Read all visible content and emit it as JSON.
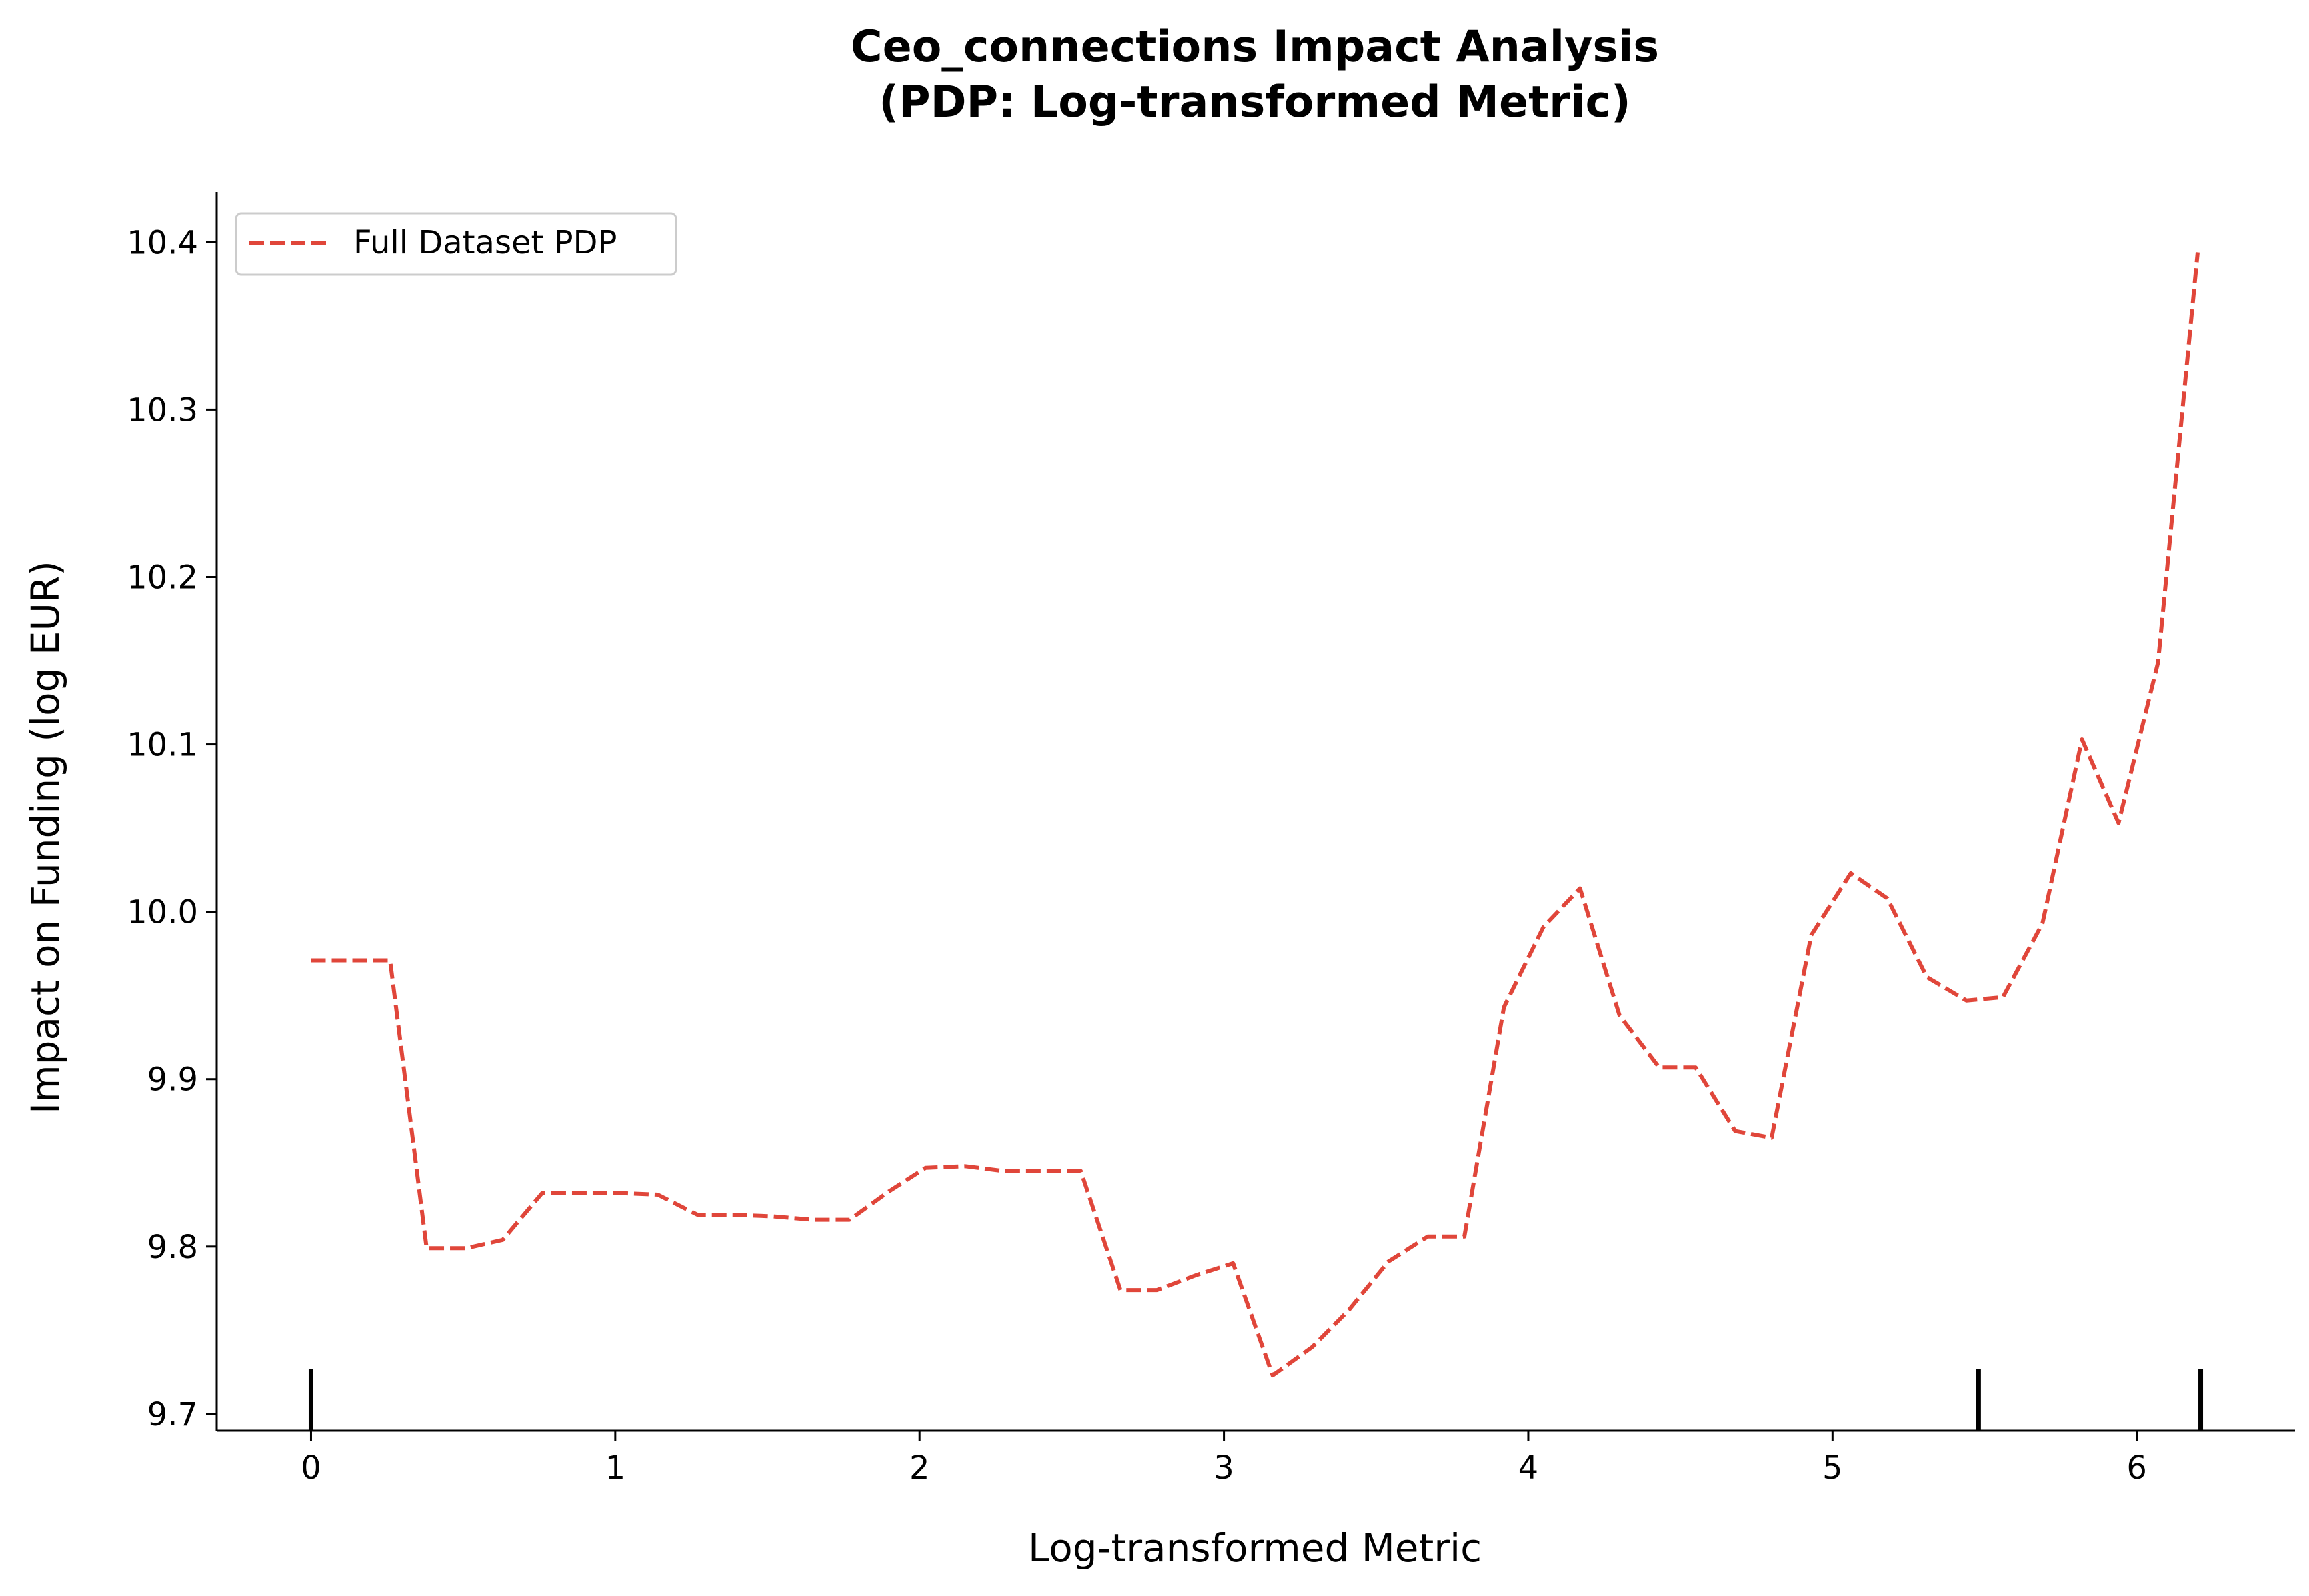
{
  "chart_data": {
    "type": "line",
    "title": "Ceo_connections Impact Analysis",
    "subtitle": "(PDP: Log-transformed Metric)",
    "xlabel": "Log-transformed Metric",
    "ylabel": "Impact on Funding (log EUR)",
    "xlim": [
      -0.31,
      6.52
    ],
    "ylim": [
      9.69,
      10.43
    ],
    "x_ticks": [
      0,
      1,
      2,
      3,
      4,
      5,
      6
    ],
    "x_tick_labels": [
      "0",
      "1",
      "2",
      "3",
      "4",
      "5",
      "6"
    ],
    "y_ticks": [
      9.7,
      9.8,
      9.9,
      10.0,
      10.1,
      10.2,
      10.3,
      10.4
    ],
    "y_tick_labels": [
      "9.7",
      "9.8",
      "9.9",
      "10.0",
      "10.1",
      "10.2",
      "10.3",
      "10.4"
    ],
    "grid": false,
    "legend_position": "top-left",
    "line_color": "#e0463a",
    "line_style": "dashed",
    "series": [
      {
        "name": "Full Dataset PDP",
        "x": [
          0.0,
          0.13,
          0.26,
          0.38,
          0.51,
          0.63,
          0.76,
          0.89,
          1.01,
          1.14,
          1.27,
          1.39,
          1.52,
          1.65,
          1.77,
          1.9,
          2.02,
          2.15,
          2.28,
          2.4,
          2.53,
          2.66,
          2.78,
          2.91,
          3.03,
          3.16,
          3.29,
          3.41,
          3.54,
          3.67,
          3.79,
          3.92,
          4.05,
          4.17,
          4.3,
          4.43,
          4.55,
          4.68,
          4.8,
          4.93,
          5.06,
          5.18,
          5.31,
          5.44,
          5.56,
          5.69,
          5.82,
          5.94,
          6.07,
          6.2
        ],
        "values": [
          9.971,
          9.971,
          9.971,
          9.799,
          9.799,
          9.804,
          9.832,
          9.832,
          9.832,
          9.831,
          9.819,
          9.819,
          9.818,
          9.816,
          9.816,
          9.833,
          9.847,
          9.848,
          9.845,
          9.845,
          9.845,
          9.774,
          9.774,
          9.783,
          9.79,
          9.723,
          9.74,
          9.762,
          9.791,
          9.806,
          9.806,
          9.943,
          9.991,
          10.014,
          9.938,
          9.907,
          9.907,
          9.869,
          9.865,
          9.986,
          10.023,
          10.008,
          9.961,
          9.947,
          9.949,
          9.993,
          10.103,
          10.053,
          10.149,
          10.394
        ]
      }
    ],
    "rug_x": [
      0.0,
      5.48,
      6.21
    ]
  }
}
